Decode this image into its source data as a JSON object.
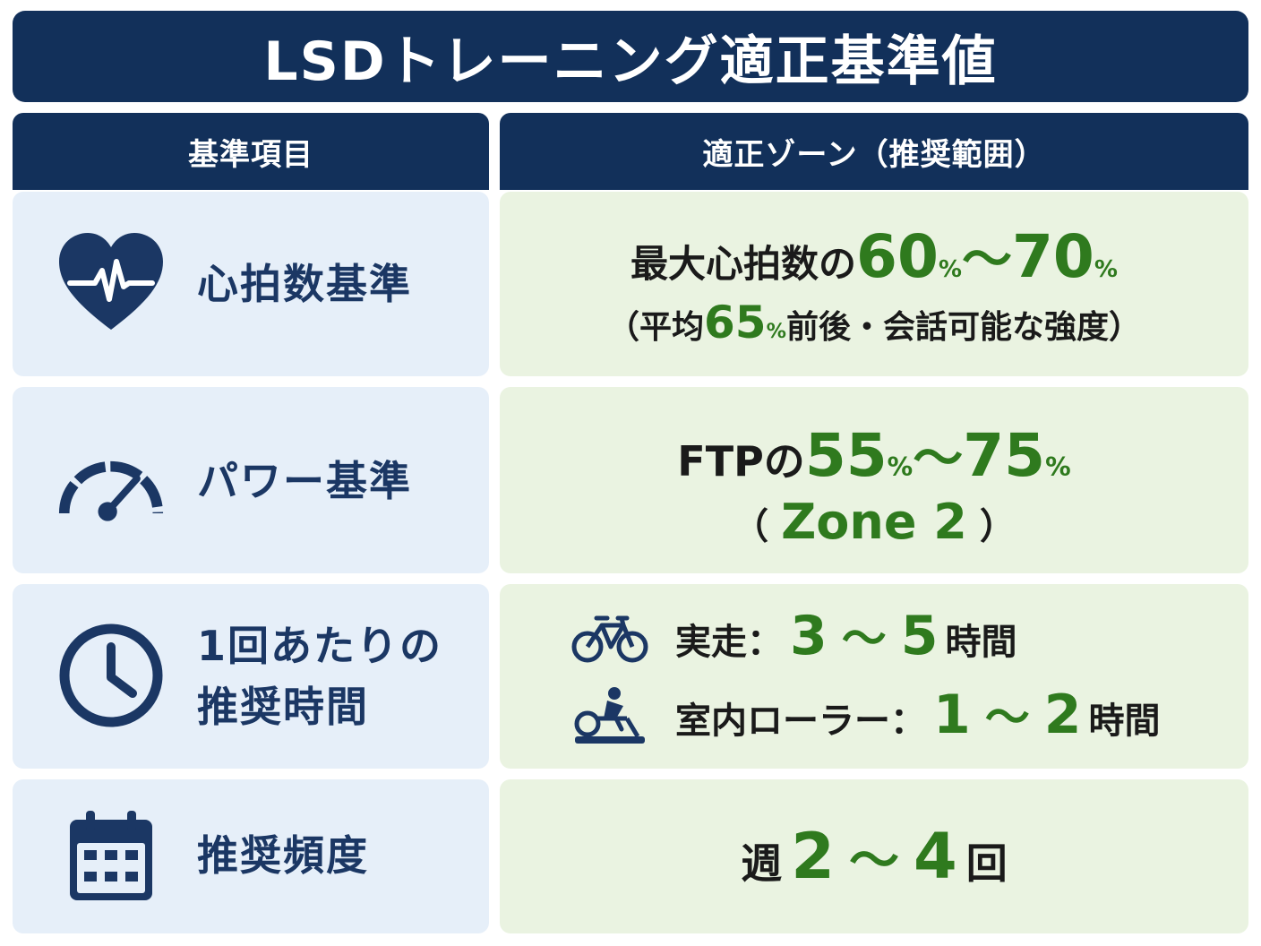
{
  "title": "LSDトレーニング適正基準値",
  "headers": {
    "left": "基準項目",
    "right": "適正ゾーン（推奨範囲）"
  },
  "rows": [
    {
      "icon": "heart-pulse-icon",
      "label": "心拍数基準",
      "line1": {
        "prefix": "最大心拍数の",
        "v1": "60",
        "pct1": "%",
        "sep": "〜",
        "v2": "70",
        "pct2": "%"
      },
      "line2": {
        "open": "（平均",
        "value": "65",
        "pct": "%",
        "rest": "前後・会話可能な強度）"
      }
    },
    {
      "icon": "speedometer-icon",
      "label": "パワー基準",
      "line1": {
        "prefix": "FTPの",
        "v1": "55",
        "pct1": "%",
        "sep": "〜",
        "v2": "75",
        "pct2": "%"
      },
      "line2": {
        "open": "（",
        "value": "Zone 2",
        "close": "）"
      }
    },
    {
      "icon": "clock-icon",
      "label_line1": "1回あたりの",
      "label_line2": "推奨時間",
      "items": [
        {
          "icon": "bicycle-icon",
          "prefix": "実走：",
          "v1": "3",
          "sep": "〜",
          "v2": "5",
          "unit": "時間"
        },
        {
          "icon": "indoor-trainer-icon",
          "prefix": "室内ローラー：",
          "v1": "1",
          "sep": "〜",
          "v2": "2",
          "unit": "時間"
        }
      ]
    },
    {
      "icon": "calendar-icon",
      "label": "推奨頻度",
      "line1": {
        "prefix": "週",
        "v1": "2",
        "sep": "〜",
        "v2": "4",
        "unit": "回"
      }
    }
  ],
  "colors": {
    "navy": "#12305a",
    "label": "#1b3764",
    "green": "#2f7a1e",
    "left_bg": "#e6eff9",
    "right_bg": "#eaf3e1"
  }
}
